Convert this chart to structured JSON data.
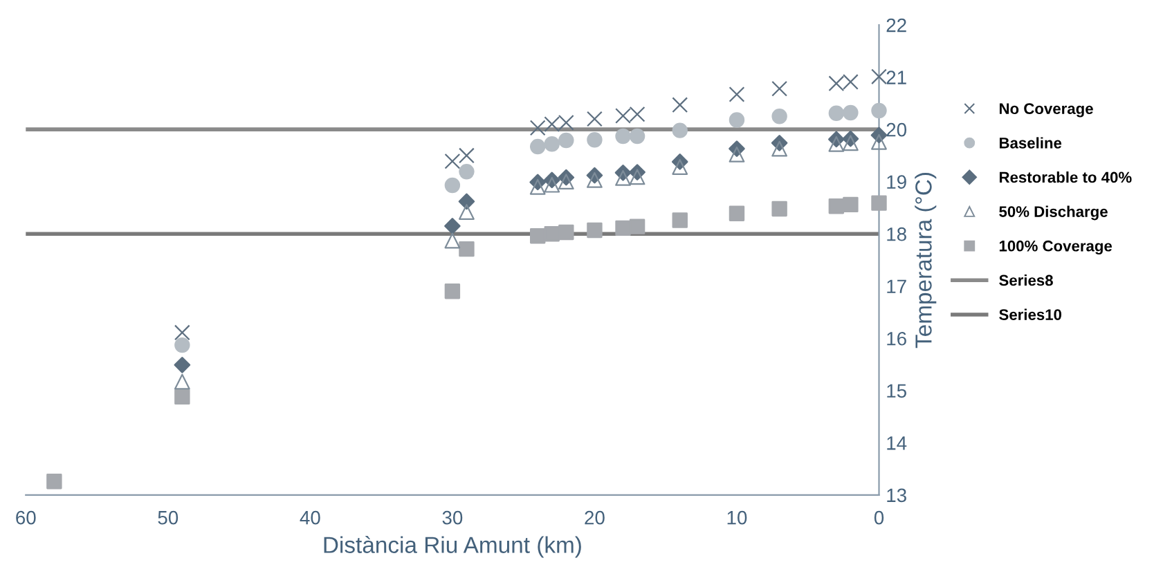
{
  "chart_data": {
    "type": "scatter",
    "xlabel": "Distància Riu Amunt (km)",
    "ylabel": "Temperatura (°C)",
    "x": [
      58,
      49,
      30,
      29,
      24,
      23,
      22,
      20,
      18,
      17,
      14,
      10,
      7,
      3,
      2,
      0
    ],
    "series": [
      {
        "name": "No Coverage",
        "color": "#5d6f80",
        "marker": "cross",
        "values": [
          null,
          16.11,
          19.39,
          19.5,
          20.03,
          20.1,
          20.13,
          20.2,
          20.26,
          20.29,
          20.47,
          20.67,
          20.78,
          20.88,
          20.91,
          21.01
        ]
      },
      {
        "name": "Baseline",
        "color": "#b4bcc3",
        "marker": "circle",
        "values": [
          null,
          15.87,
          18.93,
          19.19,
          19.67,
          19.72,
          19.79,
          19.8,
          19.87,
          19.87,
          19.98,
          20.18,
          20.25,
          20.31,
          20.32,
          20.36
        ]
      },
      {
        "name": "Restorable to 40%",
        "color": "#5b6e7f",
        "marker": "diamond",
        "values": [
          null,
          15.49,
          18.15,
          18.62,
          18.99,
          19.03,
          19.08,
          19.12,
          19.17,
          19.18,
          19.38,
          19.63,
          19.74,
          19.81,
          19.82,
          19.89
        ]
      },
      {
        "name": "50% Discharge",
        "color": "#7d8c99",
        "marker": "triangle",
        "values": [
          null,
          15.17,
          17.87,
          18.42,
          18.9,
          18.94,
          19.0,
          19.03,
          19.07,
          19.09,
          19.28,
          19.52,
          19.63,
          19.72,
          19.74,
          19.76
        ]
      },
      {
        "name": "100% Coverage",
        "color": "#a5a8ad",
        "marker": "square",
        "values": [
          13.26,
          14.88,
          16.9,
          17.71,
          17.96,
          18.0,
          18.03,
          18.07,
          18.11,
          18.14,
          18.26,
          18.39,
          18.48,
          18.53,
          18.56,
          18.59
        ]
      }
    ],
    "ref_lines": [
      {
        "axis": "y",
        "value": 20,
        "label": "Series8",
        "color": "#8a8a8a",
        "line_style": "solid"
      },
      {
        "axis": "y",
        "value": 18,
        "label": "Series10",
        "color": "#7a7a7a",
        "line_style": "solid"
      }
    ],
    "xlim": [
      60,
      0
    ],
    "xticks": [
      60,
      50,
      40,
      30,
      20,
      10,
      0
    ],
    "ylim": [
      13,
      22
    ],
    "yticks": [
      13,
      14,
      15,
      16,
      17,
      18,
      19,
      20,
      21,
      22
    ],
    "grid": false,
    "legend": "right"
  }
}
